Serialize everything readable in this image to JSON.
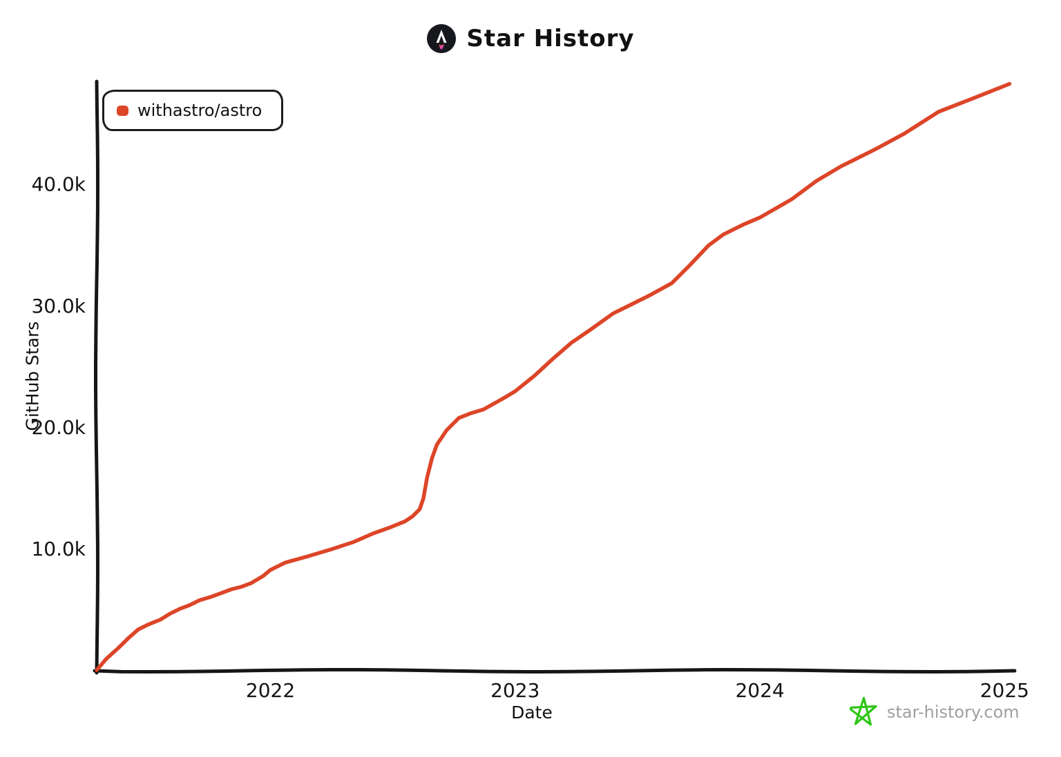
{
  "header": {
    "title": "Star History",
    "logo_icon": "astro-rocket-logo",
    "logo_bg_color": "#16181d",
    "logo_flame_top_color": "#ff6c46",
    "logo_flame_bottom_color": "#d83bd2"
  },
  "legend": {
    "items": [
      {
        "label": "withastro/astro",
        "color": "#dd4528"
      }
    ]
  },
  "watermark": {
    "text": "star-history.com",
    "icon": "star-icon",
    "icon_color": "#2ec615",
    "text_color": "#9e9e9e"
  },
  "chart_data": {
    "type": "line",
    "title": "Star History",
    "xlabel": "Date",
    "ylabel": "GitHub Stars",
    "grid": false,
    "legend_position": "top-left",
    "axis_color": "#161616",
    "xlim": [
      2021.29,
      2025.03
    ],
    "ylim": [
      0,
      48500
    ],
    "x_ticks": [
      {
        "value": 2022,
        "label": "2022"
      },
      {
        "value": 2023,
        "label": "2023"
      },
      {
        "value": 2024,
        "label": "2024"
      },
      {
        "value": 2025,
        "label": "2025"
      }
    ],
    "y_ticks": [
      {
        "value": 10000,
        "label": "10.0k"
      },
      {
        "value": 20000,
        "label": "20.0k"
      },
      {
        "value": 30000,
        "label": "30.0k"
      },
      {
        "value": 40000,
        "label": "40.0k"
      }
    ],
    "series": [
      {
        "name": "withastro/astro",
        "color": "#dd4528",
        "points": [
          [
            2021.29,
            50
          ],
          [
            2021.33,
            1000
          ],
          [
            2021.38,
            1900
          ],
          [
            2021.42,
            2700
          ],
          [
            2021.46,
            3400
          ],
          [
            2021.5,
            3800
          ],
          [
            2021.55,
            4200
          ],
          [
            2021.59,
            4700
          ],
          [
            2021.63,
            5100
          ],
          [
            2021.67,
            5400
          ],
          [
            2021.71,
            5800
          ],
          [
            2021.76,
            6100
          ],
          [
            2021.8,
            6400
          ],
          [
            2021.84,
            6700
          ],
          [
            2021.88,
            6900
          ],
          [
            2021.92,
            7200
          ],
          [
            2021.97,
            7800
          ],
          [
            2022.0,
            8300
          ],
          [
            2022.06,
            8900
          ],
          [
            2022.15,
            9400
          ],
          [
            2022.25,
            10000
          ],
          [
            2022.34,
            10600
          ],
          [
            2022.42,
            11300
          ],
          [
            2022.49,
            11800
          ],
          [
            2022.55,
            12300
          ],
          [
            2022.58,
            12700
          ],
          [
            2022.61,
            13300
          ],
          [
            2022.625,
            14200
          ],
          [
            2022.64,
            15900
          ],
          [
            2022.66,
            17500
          ],
          [
            2022.68,
            18600
          ],
          [
            2022.72,
            19800
          ],
          [
            2022.77,
            20800
          ],
          [
            2022.82,
            21200
          ],
          [
            2022.87,
            21500
          ],
          [
            2022.95,
            22400
          ],
          [
            2023.0,
            23000
          ],
          [
            2023.08,
            24300
          ],
          [
            2023.15,
            25600
          ],
          [
            2023.23,
            27000
          ],
          [
            2023.31,
            28100
          ],
          [
            2023.4,
            29400
          ],
          [
            2023.47,
            30100
          ],
          [
            2023.55,
            30900
          ],
          [
            2023.64,
            31900
          ],
          [
            2023.71,
            33300
          ],
          [
            2023.79,
            35000
          ],
          [
            2023.85,
            35900
          ],
          [
            2023.93,
            36700
          ],
          [
            2024.0,
            37300
          ],
          [
            2024.13,
            38800
          ],
          [
            2024.23,
            40300
          ],
          [
            2024.33,
            41500
          ],
          [
            2024.38,
            42000
          ],
          [
            2024.47,
            42900
          ],
          [
            2024.59,
            44200
          ],
          [
            2024.73,
            46000
          ],
          [
            2024.87,
            47100
          ],
          [
            2025.02,
            48300
          ]
        ]
      }
    ]
  }
}
